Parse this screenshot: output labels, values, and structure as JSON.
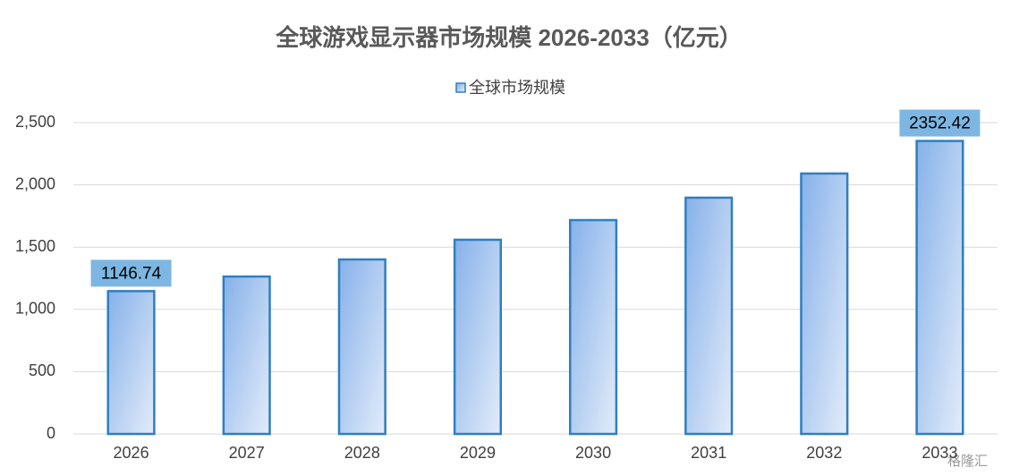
{
  "chart_data": {
    "type": "bar",
    "title": "全球游戏显示器市场规模 2026-2033（亿元）",
    "categories": [
      "2026",
      "2027",
      "2028",
      "2029",
      "2030",
      "2031",
      "2032",
      "2033"
    ],
    "series": [
      {
        "name": "全球市场规模",
        "color": "#2e7fc0",
        "values": [
          1146.74,
          1264,
          1401,
          1559,
          1717,
          1897,
          2091,
          2352.42
        ],
        "value_labels": [
          "1146.74",
          null,
          null,
          null,
          null,
          null,
          null,
          "2352.42"
        ]
      }
    ],
    "ylim": [
      0,
      2500
    ],
    "yticks": [
      0,
      500,
      {
        "value": 1000,
        "label": "1,000"
      },
      {
        "value": 1500,
        "label": "1,500"
      },
      {
        "value": 2000,
        "label": "2,000"
      },
      {
        "value": 2500,
        "label": "2,500"
      }
    ],
    "grid": true,
    "legend": "top",
    "watermark": "格隆汇"
  }
}
